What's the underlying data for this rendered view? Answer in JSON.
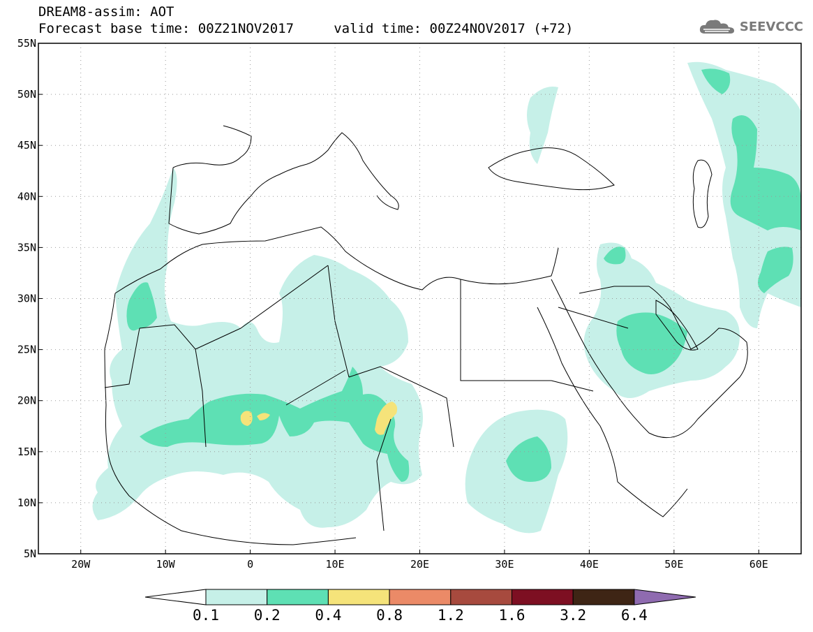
{
  "title": {
    "line1": "DREAM8-assim: AOT",
    "line2": "Forecast base time: 00Z21NOV2017     valid time: 00Z24NOV2017 (+72)"
  },
  "logo": {
    "text": "SEEVCCC",
    "icon": "cloud-icon"
  },
  "map": {
    "lon_range": [
      -25,
      65
    ],
    "lat_range": [
      5,
      55
    ],
    "lat_ticks": [
      {
        "value": 55,
        "label": "55N"
      },
      {
        "value": 50,
        "label": "50N"
      },
      {
        "value": 45,
        "label": "45N"
      },
      {
        "value": 40,
        "label": "40N"
      },
      {
        "value": 35,
        "label": "35N"
      },
      {
        "value": 30,
        "label": "30N"
      },
      {
        "value": 25,
        "label": "25N"
      },
      {
        "value": 20,
        "label": "20N"
      },
      {
        "value": 15,
        "label": "15N"
      },
      {
        "value": 10,
        "label": "10N"
      },
      {
        "value": 5,
        "label": "5N"
      }
    ],
    "lon_ticks": [
      {
        "value": -20,
        "label": "20W"
      },
      {
        "value": -10,
        "label": "10W"
      },
      {
        "value": 0,
        "label": "0"
      },
      {
        "value": 10,
        "label": "10E"
      },
      {
        "value": 20,
        "label": "20E"
      },
      {
        "value": 30,
        "label": "30E"
      },
      {
        "value": 40,
        "label": "40E"
      },
      {
        "value": 50,
        "label": "50E"
      },
      {
        "value": 60,
        "label": "60E"
      }
    ],
    "grid": "dotted"
  },
  "legend": {
    "thresholds": [
      "0.1",
      "0.2",
      "0.4",
      "0.8",
      "1.2",
      "1.6",
      "3.2",
      "6.4"
    ],
    "colors": [
      "#ffffff",
      "#c6f0e8",
      "#5ee0b4",
      "#f5e37a",
      "#eb8a67",
      "#a74a3e",
      "#7d0f22",
      "#3e2515",
      "#8f6bb0"
    ]
  },
  "aot_fields": {
    "low_color": "#c6f0e8",
    "mid_color": "#5ee0b4",
    "high_color": "#f5e37a"
  }
}
